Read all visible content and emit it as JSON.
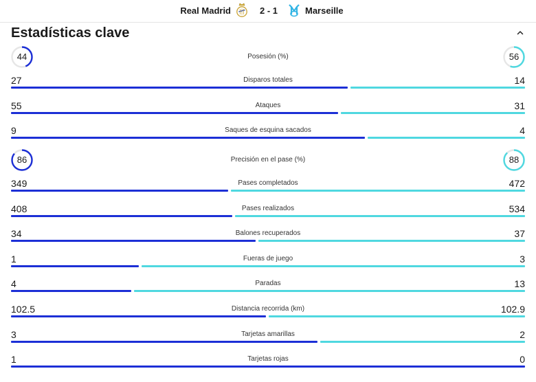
{
  "match": {
    "home_team": "Real Madrid",
    "home_crest": "real-madrid-crest-icon",
    "score": "2 - 1",
    "away_team": "Marseille",
    "away_crest": "marseille-crest-icon"
  },
  "section": {
    "title": "Estadísticas clave",
    "collapse_icon": "chevron-up-icon"
  },
  "colors": {
    "home_bar": "#1c2fd6",
    "away_bar": "#4fd8e0",
    "ring_track": "#e6e6e6"
  },
  "stats": [
    {
      "type": "circle",
      "label": "Posesión (%)",
      "home": "44",
      "away": "56",
      "home_value": 44,
      "away_value": 56
    },
    {
      "type": "bar",
      "label": "Disparos totales",
      "home": "27",
      "away": "14",
      "home_value": 27,
      "away_value": 14
    },
    {
      "type": "bar",
      "label": "Ataques",
      "home": "55",
      "away": "31",
      "home_value": 55,
      "away_value": 31
    },
    {
      "type": "bar",
      "label": "Saques de esquina sacados",
      "home": "9",
      "away": "4",
      "home_value": 9,
      "away_value": 4
    },
    {
      "type": "circle",
      "label": "Precisión en el pase (%)",
      "home": "86",
      "away": "88",
      "home_value": 86,
      "away_value": 88
    },
    {
      "type": "bar",
      "label": "Pases completados",
      "home": "349",
      "away": "472",
      "home_value": 349,
      "away_value": 472
    },
    {
      "type": "bar",
      "label": "Pases realizados",
      "home": "408",
      "away": "534",
      "home_value": 408,
      "away_value": 534
    },
    {
      "type": "bar",
      "label": "Balones recuperados",
      "home": "34",
      "away": "37",
      "home_value": 34,
      "away_value": 37
    },
    {
      "type": "bar",
      "label": "Fueras de juego",
      "home": "1",
      "away": "3",
      "home_value": 1,
      "away_value": 3
    },
    {
      "type": "bar",
      "label": "Paradas",
      "home": "4",
      "away": "13",
      "home_value": 4,
      "away_value": 13
    },
    {
      "type": "bar",
      "label": "Distancia recorrida (km)",
      "home": "102.5",
      "away": "102.9",
      "home_value": 102.5,
      "away_value": 102.9
    },
    {
      "type": "bar",
      "label": "Tarjetas amarillas",
      "home": "3",
      "away": "2",
      "home_value": 3,
      "away_value": 2
    },
    {
      "type": "bar",
      "label": "Tarjetas rojas",
      "home": "1",
      "away": "0",
      "home_value": 1,
      "away_value": 0
    }
  ]
}
